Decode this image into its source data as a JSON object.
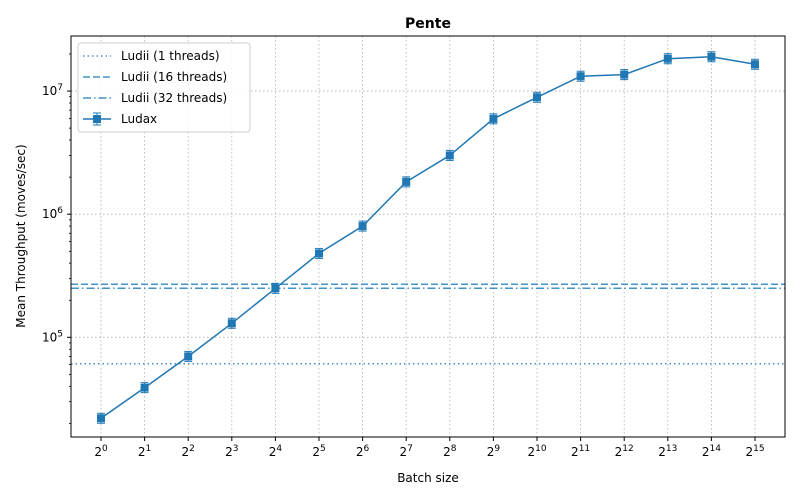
{
  "chart_data": {
    "type": "line",
    "title": "Pente",
    "xlabel": "Batch size",
    "ylabel": "Mean Throughput (moves/sec)",
    "x_base": "2",
    "x_exponents": [
      0,
      1,
      2,
      3,
      4,
      5,
      6,
      7,
      8,
      9,
      10,
      11,
      12,
      13,
      14,
      15
    ],
    "yscale": "log",
    "ylim": [
      15500,
      28000000
    ],
    "y_tick_labels": [
      {
        "value": 100000,
        "base": "10",
        "exp": "5"
      },
      {
        "value": 1000000,
        "base": "10",
        "exp": "6"
      },
      {
        "value": 10000000,
        "base": "10",
        "exp": "7"
      }
    ],
    "grid": true,
    "legend_position": "top-left",
    "series": [
      {
        "name": "Ludax",
        "style": "line-marker-errorbar",
        "color": "#1f77b4",
        "values": [
          22000,
          39000,
          70000,
          130000,
          250000,
          480000,
          800000,
          1830000,
          3000000,
          5950000,
          8900000,
          13200000,
          13600000,
          18300000,
          19000000,
          16500000
        ]
      }
    ],
    "reference_lines": [
      {
        "name": "Ludii (1 threads)",
        "style": "dotted",
        "color": "#4393c9",
        "value": 61000
      },
      {
        "name": "Ludii (16 threads)",
        "style": "dashed",
        "color": "#4393c9",
        "value": 270000
      },
      {
        "name": "Ludii (32 threads)",
        "style": "dashdot",
        "color": "#4393c9",
        "value": 250000
      }
    ]
  }
}
